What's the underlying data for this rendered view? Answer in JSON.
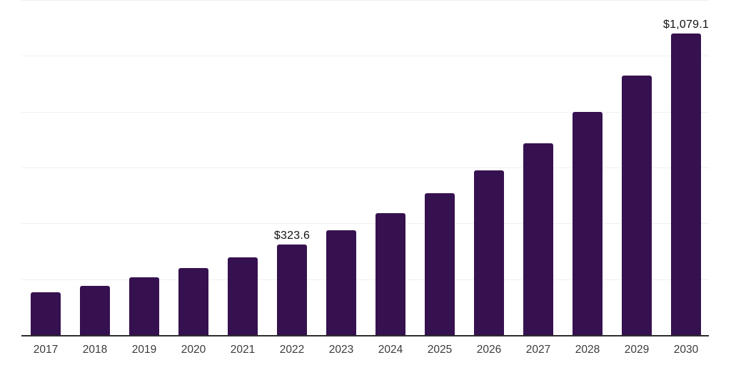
{
  "chart_data": {
    "type": "bar",
    "title": "",
    "xlabel": "",
    "ylabel": "",
    "categories": [
      "2017",
      "2018",
      "2019",
      "2020",
      "2021",
      "2022",
      "2023",
      "2024",
      "2025",
      "2026",
      "2027",
      "2028",
      "2029",
      "2030"
    ],
    "values": [
      152.4,
      177.2,
      206.0,
      239.5,
      278.4,
      323.6,
      376.2,
      437.3,
      508.4,
      591.0,
      687.1,
      798.7,
      928.4,
      1079.1
    ],
    "data_labels": [
      "",
      "",
      "",
      "",
      "",
      "$323.6",
      "",
      "",
      "",
      "",
      "",
      "",
      "",
      "$1,079.1"
    ],
    "ylim": [
      0,
      1200
    ],
    "gridline_step": 200,
    "grid": true,
    "legend": false,
    "bar_color": "#361150",
    "axis_line_color": "#2d2d2d",
    "gridline_color": "#f0f0f2",
    "tick_label_color": "#3b3b3b",
    "value_label_color": "#111111"
  }
}
